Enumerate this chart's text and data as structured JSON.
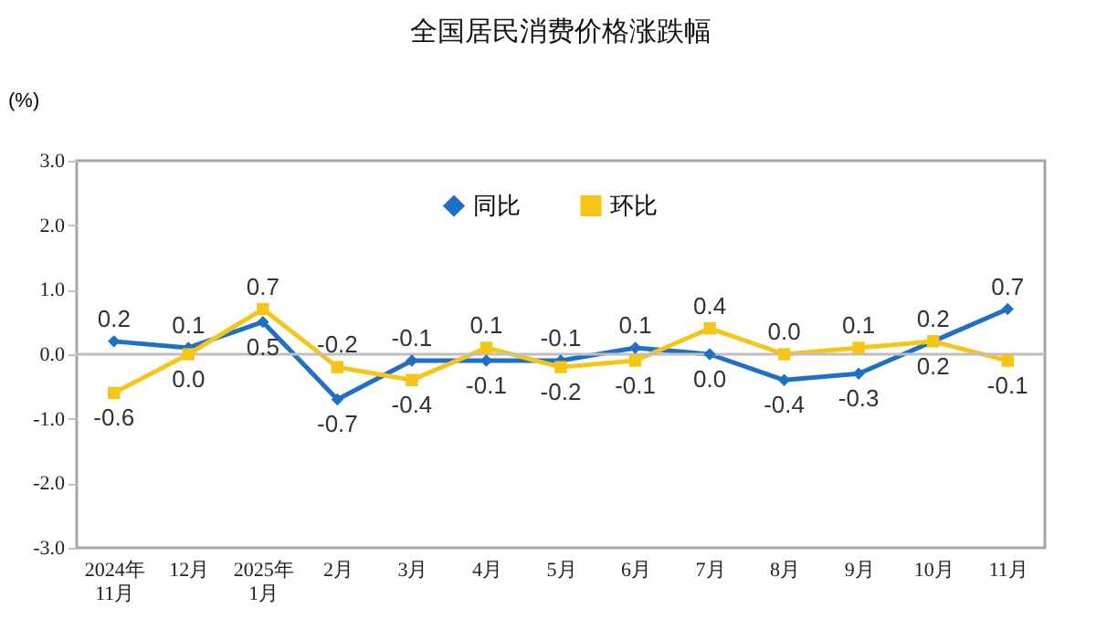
{
  "chart_data": {
    "type": "line",
    "title": "全国居民消费价格涨跌幅",
    "ylabel": "(%)",
    "categories": [
      "2024年\n11月",
      "12月",
      "2025年\n1月",
      "2月",
      "3月",
      "4月",
      "5月",
      "6月",
      "7月",
      "8月",
      "9月",
      "10月",
      "11月"
    ],
    "series": [
      {
        "name": "同比",
        "color": "#1f6fc5",
        "marker": "diamond",
        "values": [
          0.2,
          0.1,
          0.5,
          -0.7,
          -0.1,
          -0.1,
          -0.1,
          0.1,
          0.0,
          -0.4,
          -0.3,
          0.2,
          0.7
        ],
        "value_labels": [
          "0.2",
          "0.1",
          "0.5",
          "-0.7",
          "-0.1",
          "-0.1",
          "-0.1",
          "0.1",
          "0.0",
          "-0.4",
          "-0.3",
          "0.2",
          "0.7"
        ]
      },
      {
        "name": "环比",
        "color": "#f5c518",
        "marker": "square",
        "values": [
          -0.6,
          0.0,
          0.7,
          -0.2,
          -0.4,
          0.1,
          -0.2,
          -0.1,
          0.4,
          0.0,
          0.1,
          0.2,
          -0.1
        ],
        "value_labels": [
          "-0.6",
          "0.0",
          "0.7",
          "-0.2",
          "-0.4",
          "0.1",
          "-0.2",
          "-0.1",
          "0.4",
          "0.0",
          "0.1",
          "0.2",
          "-0.1"
        ]
      }
    ],
    "ylim": [
      -3,
      3
    ],
    "yticks": [
      {
        "value": -3,
        "label": "-3.0"
      },
      {
        "value": -2,
        "label": "-2.0"
      },
      {
        "value": -1,
        "label": "-1.0"
      },
      {
        "value": 0,
        "label": "0.0"
      },
      {
        "value": 1,
        "label": "1.0"
      },
      {
        "value": 2,
        "label": "2.0"
      },
      {
        "value": 3,
        "label": "3.0"
      }
    ],
    "ref_lines": [
      {
        "axis": "y",
        "value": 0,
        "color": "#bfbfbf"
      }
    ],
    "legend": "top",
    "grid": false
  }
}
